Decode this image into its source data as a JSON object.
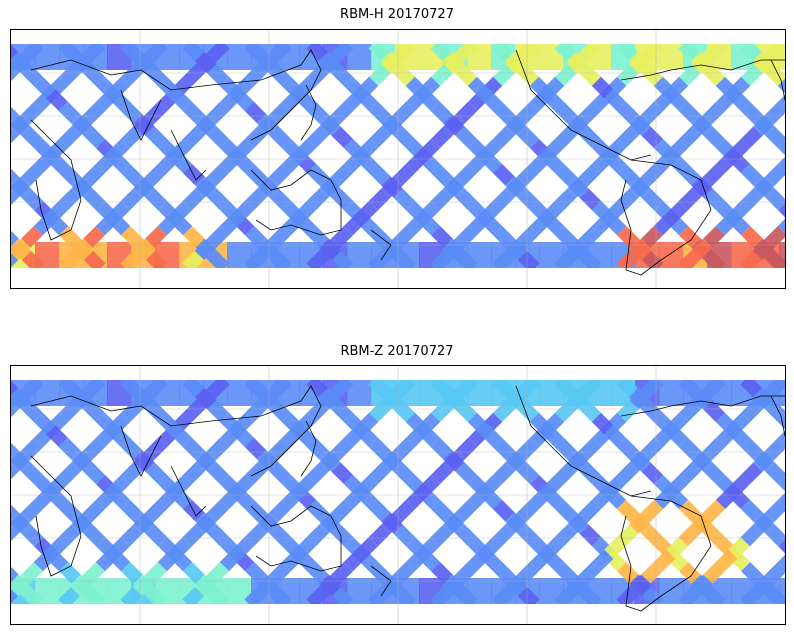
{
  "panels": [
    {
      "title": "RBM-H 20170727",
      "field": {
        "description_key": "swath-colored-field",
        "colormap": [
          "#5b62f2",
          "#5a8cf7",
          "#58c8f4",
          "#7ef2d0",
          "#e6f060",
          "#ffb648",
          "#f86a4c",
          "#c85860"
        ],
        "hot_regions": [
          {
            "lon_start": 0,
            "lon_end": 0.25,
            "lat_band": "south",
            "level": 0.85
          },
          {
            "lon_start": 0.78,
            "lon_end": 1.0,
            "lat_band": "south",
            "level": 0.95
          },
          {
            "lon_start": 0.45,
            "lon_end": 1.0,
            "lat_band": "north",
            "level": 0.55
          }
        ]
      }
    },
    {
      "title": "RBM-Z 20170727",
      "field": {
        "description_key": "swath-colored-field",
        "colormap": [
          "#5b62f2",
          "#5a8cf7",
          "#58c8f4",
          "#7ef2d0",
          "#e6f060",
          "#ffb648",
          "#f86a4c",
          "#c85860"
        ],
        "hot_regions": [
          {
            "lon_start": 0,
            "lon_end": 0.3,
            "lat_band": "south",
            "level": 0.45
          },
          {
            "lon_start": 0.78,
            "lon_end": 0.95,
            "lat_band": "mid-south",
            "level": 0.75
          },
          {
            "lon_start": 0.45,
            "lon_end": 0.8,
            "lat_band": "north",
            "level": 0.3
          }
        ]
      }
    }
  ]
}
